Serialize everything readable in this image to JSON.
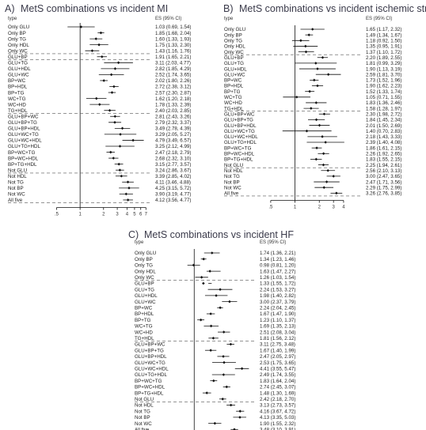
{
  "chart_data": [
    {
      "type": "forest",
      "panel_label": "A)",
      "title": "MetS combinations vs incident MI",
      "col_type": "type",
      "col_es": "ES (95% CI)",
      "xscale": "log",
      "xticks": [
        ".5",
        "1",
        "2",
        "3",
        "4",
        "5",
        "6",
        "7"
      ],
      "xtick_values": [
        0.5,
        1,
        2,
        3,
        4,
        5,
        6,
        7
      ],
      "xlim": [
        0.4,
        8
      ],
      "separators_after": [
        4,
        5,
        14,
        24,
        29
      ],
      "rows": [
        {
          "label": "Only GLU",
          "es": 1.03,
          "lo": 0.69,
          "hi": 1.54,
          "text": "1.03 (0.69, 1.54)"
        },
        {
          "label": "Only BP",
          "es": 1.85,
          "lo": 1.68,
          "hi": 2.04,
          "text": "1.85 (1.68, 2.04)"
        },
        {
          "label": "Only TG",
          "es": 1.6,
          "lo": 1.33,
          "hi": 1.93,
          "text": "1.60 (1.33, 1.93)"
        },
        {
          "label": "Only HDL",
          "es": 1.75,
          "lo": 1.33,
          "hi": 2.3,
          "text": "1.75 (1.33, 2.30)"
        },
        {
          "label": "Only WC",
          "es": 1.43,
          "lo": 1.16,
          "hi": 1.76,
          "text": "1.43 (1.16, 1.76)"
        },
        {
          "label": "GLU+BP",
          "es": 1.91,
          "lo": 1.65,
          "hi": 2.21,
          "text": "1.91 (1.65, 2.21)"
        },
        {
          "label": "GLU+TG",
          "es": 3.11,
          "lo": 2.03,
          "hi": 4.77,
          "text": "3.11 (2.03, 4.77)"
        },
        {
          "label": "GLU+HDL",
          "es": 2.82,
          "lo": 1.85,
          "hi": 4.29,
          "text": "2.82 (1.85, 4.29)"
        },
        {
          "label": "GLU+WC",
          "es": 2.52,
          "lo": 1.74,
          "hi": 3.65,
          "text": "2.52 (1.74, 3.65)"
        },
        {
          "label": "BP+WC",
          "es": 2.02,
          "lo": 1.8,
          "hi": 2.26,
          "text": "2.02 (1.80, 2.26)"
        },
        {
          "label": "BP+HDL",
          "es": 2.72,
          "lo": 2.38,
          "hi": 3.12,
          "text": "2.72 (2.38, 3.12)"
        },
        {
          "label": "BP+TG",
          "es": 2.57,
          "lo": 2.3,
          "hi": 2.87,
          "text": "2.57 (2.30, 2.87)"
        },
        {
          "label": "WC+TG",
          "es": 1.62,
          "lo": 1.2,
          "hi": 2.18,
          "text": "1.62 (1.20, 2.18)"
        },
        {
          "label": "WC+HD",
          "es": 1.78,
          "lo": 1.33,
          "hi": 2.39,
          "text": "1.78 (1.33, 2.39)"
        },
        {
          "label": "TG+HDL",
          "es": 2.4,
          "lo": 2.03,
          "hi": 2.85,
          "text": "2.40 (2.03, 2.85)"
        },
        {
          "label": "GLU+BP+WC",
          "es": 2.81,
          "lo": 2.43,
          "hi": 3.26,
          "text": "2.81 (2.43, 3.26)"
        },
        {
          "label": "GLU+BP+TG",
          "es": 2.79,
          "lo": 2.32,
          "hi": 3.37,
          "text": "2.79 (2.32, 3.37)"
        },
        {
          "label": "GLU+BP+HDL",
          "es": 3.49,
          "lo": 2.78,
          "hi": 4.39,
          "text": "3.49 (2.78, 4.39)"
        },
        {
          "label": "GLU+WC+TG",
          "es": 3.29,
          "lo": 2.05,
          "hi": 5.27,
          "text": "3.29 (2.05, 5.27)"
        },
        {
          "label": "GLU+WC+HDL",
          "es": 4.79,
          "lo": 3.49,
          "hi": 6.57,
          "text": "4.79 (3.49, 6.57)"
        },
        {
          "label": "GLU+TG+HDL",
          "es": 3.25,
          "lo": 2.12,
          "hi": 4.99,
          "text": "3.25 (2.12, 4.99)"
        },
        {
          "label": "BP+WC+TG",
          "es": 2.47,
          "lo": 2.18,
          "hi": 2.79,
          "text": "2.47 (2.18, 2.79)"
        },
        {
          "label": "BP+WC+HDL",
          "es": 2.68,
          "lo": 2.32,
          "hi": 3.1,
          "text": "2.68 (2.32, 3.10)"
        },
        {
          "label": "BP+TG+HDL",
          "es": 3.15,
          "lo": 2.77,
          "hi": 3.57,
          "text": "3.15 (2.77, 3.57)"
        },
        {
          "label": "Not GLU",
          "es": 3.24,
          "lo": 2.86,
          "hi": 3.67,
          "text": "3.24 (2.86, 3.67)"
        },
        {
          "label": "Not HDL",
          "es": 3.39,
          "lo": 2.85,
          "hi": 4.02,
          "text": "3.39 (2.85, 4.02)"
        },
        {
          "label": "Not TG",
          "es": 4.11,
          "lo": 3.46,
          "hi": 4.88,
          "text": "4.11 (3.46, 4.88)"
        },
        {
          "label": "Not BP",
          "es": 4.25,
          "lo": 3.15,
          "hi": 5.72,
          "text": "4.25 (3.15, 5.72)"
        },
        {
          "label": "Not WC",
          "es": 3.9,
          "lo": 3.19,
          "hi": 4.77,
          "text": "3.90 (3.19, 4.77)"
        },
        {
          "label": "All five",
          "es": 4.12,
          "lo": 3.56,
          "hi": 4.77,
          "text": "4.12 (3.56, 4.77)"
        }
      ]
    },
    {
      "type": "forest",
      "panel_label": "B)",
      "title": "MetS combinations vs incident ischemic stroke",
      "col_type": "type",
      "col_es": "ES (95% CI)",
      "xscale": "log",
      "xticks": [
        ".5",
        "1",
        "2",
        "3",
        "4"
      ],
      "xtick_values": [
        0.5,
        1,
        2,
        3,
        4
      ],
      "xlim": [
        0.4,
        4.8
      ],
      "separators_after": [
        4,
        14,
        24,
        29
      ],
      "rows": [
        {
          "label": "Only GLU",
          "es": 1.65,
          "lo": 1.17,
          "hi": 2.32,
          "text": "1.65 (1.17, 2.32)"
        },
        {
          "label": "Only BP",
          "es": 1.49,
          "lo": 1.34,
          "hi": 1.67,
          "text": "1.49 (1.34, 1.67)"
        },
        {
          "label": "Only TG",
          "es": 1.18,
          "lo": 0.92,
          "hi": 1.5,
          "text": "1.18 (0.92, 1.50)"
        },
        {
          "label": "Only HDL",
          "es": 1.35,
          "lo": 0.95,
          "hi": 1.91,
          "text": "1.35 (0.95, 1.91)"
        },
        {
          "label": "Only WC",
          "es": 1.37,
          "lo": 1.1,
          "hi": 1.72,
          "text": "1.37 (1.10, 1.72)"
        },
        {
          "label": "GLU+BP",
          "es": 2.2,
          "lo": 1.89,
          "hi": 2.55,
          "text": "2.20 (1.89, 2.55)"
        },
        {
          "label": "GLU+TG",
          "es": 1.81,
          "lo": 0.99,
          "hi": 3.29,
          "text": "1.81 (0.99, 3.29)"
        },
        {
          "label": "GLU+HDL",
          "es": 1.9,
          "lo": 1.13,
          "hi": 3.19,
          "text": "1.90 (1.13, 3.19)"
        },
        {
          "label": "GLU+WC",
          "es": 2.59,
          "lo": 1.81,
          "hi": 3.7,
          "text": "2.59 (1.81, 3.70)"
        },
        {
          "label": "BP+WC",
          "es": 1.73,
          "lo": 1.52,
          "hi": 1.96,
          "text": "1.73 (1.52, 1.96)"
        },
        {
          "label": "BP+HDL",
          "es": 1.9,
          "lo": 1.62,
          "hi": 2.23,
          "text": "1.90 (1.62, 2.23)"
        },
        {
          "label": "BP+TG",
          "es": 1.52,
          "lo": 1.33,
          "hi": 1.74,
          "text": "1.52 (1.33, 1.74)"
        },
        {
          "label": "WC+TG",
          "es": 1.05,
          "lo": 0.71,
          "hi": 1.55,
          "text": "1.05 (0.71, 1.55)"
        },
        {
          "label": "WC+HD",
          "es": 1.83,
          "lo": 1.36,
          "hi": 2.46,
          "text": "1.83 (1.36, 2.46)"
        },
        {
          "label": "TG+HDL",
          "es": 1.58,
          "lo": 1.28,
          "hi": 1.97,
          "text": "1.58 (1.28, 1.97)"
        },
        {
          "label": "GLU+BP+WC",
          "es": 2.3,
          "lo": 1.98,
          "hi": 2.72,
          "text": "2.30 (1.98, 2.72)"
        },
        {
          "label": "GLU+BP+TG",
          "es": 1.84,
          "lo": 1.45,
          "hi": 2.34,
          "text": "1.84 (1.45, 2.34)"
        },
        {
          "label": "GLU+BP+HDL",
          "es": 2.01,
          "lo": 1.5,
          "hi": 2.69,
          "text": "2.01 (1.50, 2.69)"
        },
        {
          "label": "GLU+WC+TG",
          "es": 1.4,
          "lo": 0.7,
          "hi": 2.83,
          "text": "1.40 (0.70, 2.83)"
        },
        {
          "label": "GLU+WC+HDL",
          "es": 2.18,
          "lo": 1.43,
          "hi": 3.33,
          "text": "2.18 (1.43, 3.33)"
        },
        {
          "label": "GLU+TG+HDL",
          "es": 2.39,
          "lo": 1.4,
          "hi": 4.08,
          "text": "2.39 (1.40, 4.08)"
        },
        {
          "label": "BP+WC+TG",
          "es": 1.86,
          "lo": 1.61,
          "hi": 2.15,
          "text": "1.86 (1.61, 2.15)"
        },
        {
          "label": "BP+WC+HDL",
          "es": 2.26,
          "lo": 1.92,
          "hi": 2.65,
          "text": "2.26 (1.92, 2.65)"
        },
        {
          "label": "BP+TG+HDL",
          "es": 1.83,
          "lo": 1.55,
          "hi": 2.15,
          "text": "1.83 (1.55, 2.15)"
        },
        {
          "label": "Not GLU",
          "es": 2.25,
          "lo": 1.94,
          "hi": 2.61,
          "text": "2.25 (1.94, 2.61)"
        },
        {
          "label": "Not HDL",
          "es": 2.56,
          "lo": 2.1,
          "hi": 3.13,
          "text": "2.56 (2.10, 3.13)"
        },
        {
          "label": "Not TG",
          "es": 3.0,
          "lo": 2.47,
          "hi": 3.65,
          "text": "3.00 (2.47, 3.65)"
        },
        {
          "label": "Not BP",
          "es": 2.47,
          "lo": 1.71,
          "hi": 3.56,
          "text": "2.47 (1.71, 3.56)"
        },
        {
          "label": "Not WC",
          "es": 2.29,
          "lo": 1.75,
          "hi": 2.99,
          "text": "2.29 (1.75, 2.99)"
        },
        {
          "label": "All five",
          "es": 3.26,
          "lo": 2.76,
          "hi": 3.85,
          "text": "3.26 (2.76, 3.85)"
        }
      ]
    },
    {
      "type": "forest",
      "panel_label": "C)",
      "title": "MetS combinations vs incident HF",
      "col_type": "type",
      "col_es": "ES (95% CI)",
      "xscale": "log",
      "xticks": [
        ".5",
        "1",
        "2",
        "3",
        "4",
        "5",
        "6"
      ],
      "xtick_values": [
        0.5,
        1,
        2,
        3,
        4,
        5,
        6
      ],
      "xlim": [
        0.4,
        6.6
      ],
      "separators_after": [
        4,
        14,
        24,
        29
      ],
      "rows": [
        {
          "label": "Only GLU",
          "es": 1.74,
          "lo": 1.36,
          "hi": 2.21,
          "text": "1.74 (1.36, 2.21)"
        },
        {
          "label": "Only BP",
          "es": 1.34,
          "lo": 1.23,
          "hi": 1.46,
          "text": "1.34 (1.23, 1.46)"
        },
        {
          "label": "Only TG",
          "es": 0.98,
          "lo": 0.81,
          "hi": 1.2,
          "text": "0.98 (0.81, 1.20)"
        },
        {
          "label": "Only HDL",
          "es": 1.63,
          "lo": 1.47,
          "hi": 2.27,
          "text": "1.63 (1.47, 2.27)"
        },
        {
          "label": "Only WC",
          "es": 1.26,
          "lo": 1.03,
          "hi": 1.54,
          "text": "1.26 (1.03, 1.54)"
        },
        {
          "label": "GLU+BP",
          "es": 1.33,
          "lo": 1.55,
          "hi": 1.72,
          "text": "1.33 (1.55, 1.72)"
        },
        {
          "label": "GLU+TG",
          "es": 2.24,
          "lo": 1.53,
          "hi": 3.27,
          "text": "2.24 (1.53, 3.27)"
        },
        {
          "label": "GLU+HDL",
          "es": 1.98,
          "lo": 1.4,
          "hi": 2.82,
          "text": "1.98 (1.40, 2.82)"
        },
        {
          "label": "GLU+WC",
          "es": 3.0,
          "lo": 2.37,
          "hi": 3.79,
          "text": "3.00 (2.37, 3.79)"
        },
        {
          "label": "BP+WC",
          "es": 2.24,
          "lo": 2.04,
          "hi": 2.45,
          "text": "2.24 (2.04, 2.45)"
        },
        {
          "label": "BP+HDL",
          "es": 1.67,
          "lo": 1.47,
          "hi": 1.9,
          "text": "1.67 (1.47, 1.90)"
        },
        {
          "label": "BP+TG",
          "es": 1.23,
          "lo": 1.1,
          "hi": 1.37,
          "text": "1.23 (1.10, 1.37)"
        },
        {
          "label": "WC+TG",
          "es": 1.69,
          "lo": 1.35,
          "hi": 2.13,
          "text": "1.69 (1.35, 2.13)"
        },
        {
          "label": "WC+HD",
          "es": 2.51,
          "lo": 2.08,
          "hi": 3.04,
          "text": "2.51 (2.08, 3.04)"
        },
        {
          "label": "TG+HDL",
          "es": 1.81,
          "lo": 1.56,
          "hi": 2.12,
          "text": "1.81 (1.56, 2.12)"
        },
        {
          "label": "GLU+BP+WC",
          "es": 3.11,
          "lo": 2.75,
          "hi": 3.48,
          "text": "3.11 (2.75, 3.48)"
        },
        {
          "label": "GLU+BP+TG",
          "es": 1.67,
          "lo": 1.4,
          "hi": 1.99,
          "text": "1.67 (1.40, 1.99)"
        },
        {
          "label": "GLU+BP+HDL",
          "es": 2.47,
          "lo": 2.05,
          "hi": 2.97,
          "text": "2.47 (2.05, 2.97)"
        },
        {
          "label": "GLU+WC+TG",
          "es": 2.53,
          "lo": 1.75,
          "hi": 3.65,
          "text": "2.53 (1.75, 3.65)"
        },
        {
          "label": "GLU+WC+HDL",
          "es": 4.41,
          "lo": 3.55,
          "hi": 5.47,
          "text": "4.41 (3.55, 5.47)"
        },
        {
          "label": "GLU+TG+HDL",
          "es": 2.49,
          "lo": 1.74,
          "hi": 3.55,
          "text": "2.49 (1.74, 3.55)"
        },
        {
          "label": "BP+WC+TG",
          "es": 1.83,
          "lo": 1.64,
          "hi": 2.04,
          "text": "1.83 (1.64, 2.04)"
        },
        {
          "label": "BP+WC+HDL",
          "es": 2.74,
          "lo": 2.45,
          "hi": 3.07,
          "text": "2.74 (2.45, 3.07)"
        },
        {
          "label": "BP+TG+HDL",
          "es": 1.48,
          "lo": 1.3,
          "hi": 1.69,
          "text": "1.48 (1.30, 1.69)"
        },
        {
          "label": "Not GLU",
          "es": 2.42,
          "lo": 2.18,
          "hi": 2.7,
          "text": "2.42 (2.18, 2.70)"
        },
        {
          "label": "Not HDL",
          "es": 3.13,
          "lo": 2.73,
          "hi": 3.57,
          "text": "3.13 (2.73, 3.57)"
        },
        {
          "label": "Not TG",
          "es": 4.16,
          "lo": 3.67,
          "hi": 4.72,
          "text": "4.16 (3.67, 4.72)"
        },
        {
          "label": "Not BP",
          "es": 4.13,
          "lo": 3.35,
          "hi": 5.03,
          "text": "4.13 (3.35, 5.03)"
        },
        {
          "label": "Not WC",
          "es": 1.9,
          "lo": 1.55,
          "hi": 2.32,
          "text": "1.90 (1.55, 2.32)"
        },
        {
          "label": "All five",
          "es": 3.48,
          "lo": 3.1,
          "hi": 3.91,
          "text": "3.48 (3.10, 3.91)"
        }
      ]
    }
  ]
}
